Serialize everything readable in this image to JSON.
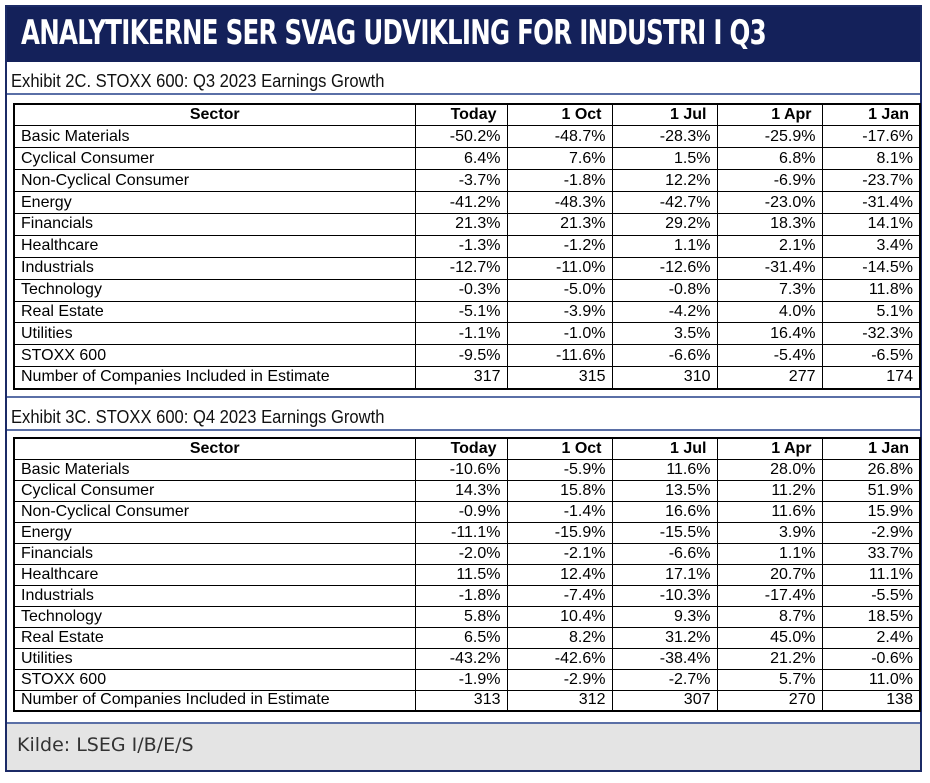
{
  "header": {
    "title": "ANALYTIKERNE SER SVAG UDVIKLING FOR INDUSTRI I Q3"
  },
  "columns": [
    "Sector",
    "Today",
    "1 Oct",
    "1 Jul",
    "1 Apr",
    "1 Jan"
  ],
  "exhibits": [
    {
      "title": "Exhibit 2C.  STOXX 600: Q3 2023 Earnings Growth",
      "rows": [
        [
          "Basic Materials",
          "-50.2%",
          "-48.7%",
          "-28.3%",
          "-25.9%",
          "-17.6%"
        ],
        [
          "Cyclical Consumer",
          "6.4%",
          "7.6%",
          "1.5%",
          "6.8%",
          "8.1%"
        ],
        [
          "Non-Cyclical Consumer",
          "-3.7%",
          "-1.8%",
          "12.2%",
          "-6.9%",
          "-23.7%"
        ],
        [
          "Energy",
          "-41.2%",
          "-48.3%",
          "-42.7%",
          "-23.0%",
          "-31.4%"
        ],
        [
          "Financials",
          "21.3%",
          "21.3%",
          "29.2%",
          "18.3%",
          "14.1%"
        ],
        [
          "Healthcare",
          "-1.3%",
          "-1.2%",
          "1.1%",
          "2.1%",
          "3.4%"
        ],
        [
          "Industrials",
          "-12.7%",
          "-11.0%",
          "-12.6%",
          "-31.4%",
          "-14.5%"
        ],
        [
          "Technology",
          "-0.3%",
          "-5.0%",
          "-0.8%",
          "7.3%",
          "11.8%"
        ],
        [
          "Real Estate",
          "-5.1%",
          "-3.9%",
          "-4.2%",
          "4.0%",
          "5.1%"
        ],
        [
          "Utilities",
          "-1.1%",
          "-1.0%",
          "3.5%",
          "16.4%",
          "-32.3%"
        ],
        [
          "STOXX 600",
          "-9.5%",
          "-11.6%",
          "-6.6%",
          "-5.4%",
          "-6.5%"
        ],
        [
          "Number of Companies Included in Estimate",
          "317",
          "315",
          "310",
          "277",
          "174"
        ]
      ]
    },
    {
      "title": "Exhibit 3C.  STOXX 600: Q4 2023 Earnings Growth",
      "rows": [
        [
          "Basic Materials",
          "-10.6%",
          "-5.9%",
          "11.6%",
          "28.0%",
          "26.8%"
        ],
        [
          "Cyclical Consumer",
          "14.3%",
          "15.8%",
          "13.5%",
          "11.2%",
          "51.9%"
        ],
        [
          "Non-Cyclical Consumer",
          "-0.9%",
          "-1.4%",
          "16.6%",
          "11.6%",
          "15.9%"
        ],
        [
          "Energy",
          "-11.1%",
          "-15.9%",
          "-15.5%",
          "3.9%",
          "-2.9%"
        ],
        [
          "Financials",
          "-2.0%",
          "-2.1%",
          "-6.6%",
          "1.1%",
          "33.7%"
        ],
        [
          "Healthcare",
          "11.5%",
          "12.4%",
          "17.1%",
          "20.7%",
          "11.1%"
        ],
        [
          "Industrials",
          "-1.8%",
          "-7.4%",
          "-10.3%",
          "-17.4%",
          "-5.5%"
        ],
        [
          "Technology",
          "5.8%",
          "10.4%",
          "9.3%",
          "8.7%",
          "18.5%"
        ],
        [
          "Real Estate",
          "6.5%",
          "8.2%",
          "31.2%",
          "45.0%",
          "2.4%"
        ],
        [
          "Utilities",
          "-43.2%",
          "-42.6%",
          "-38.4%",
          "21.2%",
          "-0.6%"
        ],
        [
          "STOXX 600",
          "-1.9%",
          "-2.9%",
          "-2.7%",
          "5.7%",
          "11.0%"
        ],
        [
          "Number of Companies Included in Estimate",
          "313",
          "312",
          "307",
          "270",
          "138"
        ]
      ]
    }
  ],
  "source": "Kilde: LSEG I/B/E/S"
}
